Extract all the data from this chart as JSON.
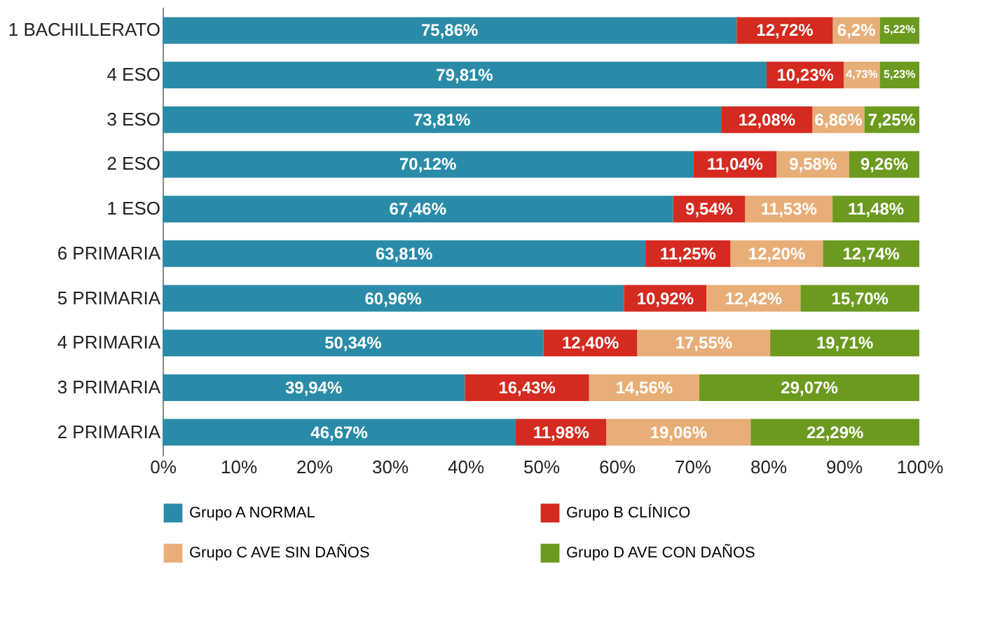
{
  "chart_data": {
    "type": "bar",
    "orientation": "horizontal",
    "stacked": true,
    "categories": [
      "1 BACHILLERATO",
      "4 ESO",
      "3 ESO",
      "2 ESO",
      "1 ESO",
      "6 PRIMARIA",
      "5 PRIMARIA",
      "4 PRIMARIA",
      "3 PRIMARIA",
      "2 PRIMARIA"
    ],
    "series": [
      {
        "name": "Grupo A NORMAL",
        "color": "#2a8ba8",
        "values": [
          75.86,
          79.81,
          73.81,
          70.12,
          67.46,
          63.81,
          60.96,
          50.34,
          39.94,
          46.67
        ],
        "value_labels": [
          "75,86%",
          "79,81%",
          "73,81%",
          "70,12%",
          "67,46%",
          "63,81%",
          "60,96%",
          "50,34%",
          "39,94%",
          "46,67%"
        ]
      },
      {
        "name": "Grupo B CLÍNICO",
        "color": "#d42a1f",
        "values": [
          12.72,
          10.23,
          12.08,
          11.04,
          9.54,
          11.25,
          10.92,
          12.4,
          16.43,
          11.98
        ],
        "value_labels": [
          "12,72%",
          "10,23%",
          "12,08%",
          "11,04%",
          "9,54%",
          "11,25%",
          "10,92%",
          "12,40%",
          "16,43%",
          "11,98%"
        ]
      },
      {
        "name": "Grupo C AVE SIN DAÑOS",
        "color": "#e8ae78",
        "values": [
          6.2,
          4.73,
          6.86,
          9.58,
          11.53,
          12.2,
          12.42,
          17.55,
          14.56,
          19.06
        ],
        "value_labels": [
          "6,2%",
          "4,73%",
          "6,86%",
          "9,58%",
          "11,53%",
          "12,20%",
          "12,42%",
          "17,55%",
          "14,56%",
          "19,06%"
        ]
      },
      {
        "name": "Grupo D AVE CON DAÑOS",
        "color": "#6b9a1f",
        "values": [
          5.22,
          5.23,
          7.25,
          9.26,
          11.48,
          12.74,
          15.7,
          19.71,
          29.07,
          22.29
        ],
        "value_labels": [
          "5,22%",
          "5,23%",
          "7,25%",
          "9,26%",
          "11,48%",
          "12,74%",
          "15,70%",
          "19,71%",
          "29,07%",
          "22,29%"
        ]
      }
    ],
    "xlim": [
      0,
      100
    ],
    "xticks": [
      {
        "value": 0,
        "label": "0%"
      },
      {
        "value": 10,
        "label": "10%"
      },
      {
        "value": 20,
        "label": "20%"
      },
      {
        "value": 30,
        "label": "30%"
      },
      {
        "value": 40,
        "label": "40%"
      },
      {
        "value": 50,
        "label": "50%"
      },
      {
        "value": 60,
        "label": "60%"
      },
      {
        "value": 70,
        "label": "70%"
      },
      {
        "value": 80,
        "label": "80%"
      },
      {
        "value": 90,
        "label": "90%"
      },
      {
        "value": 100,
        "label": "100%"
      }
    ],
    "grid": false,
    "legend": "bottom"
  }
}
